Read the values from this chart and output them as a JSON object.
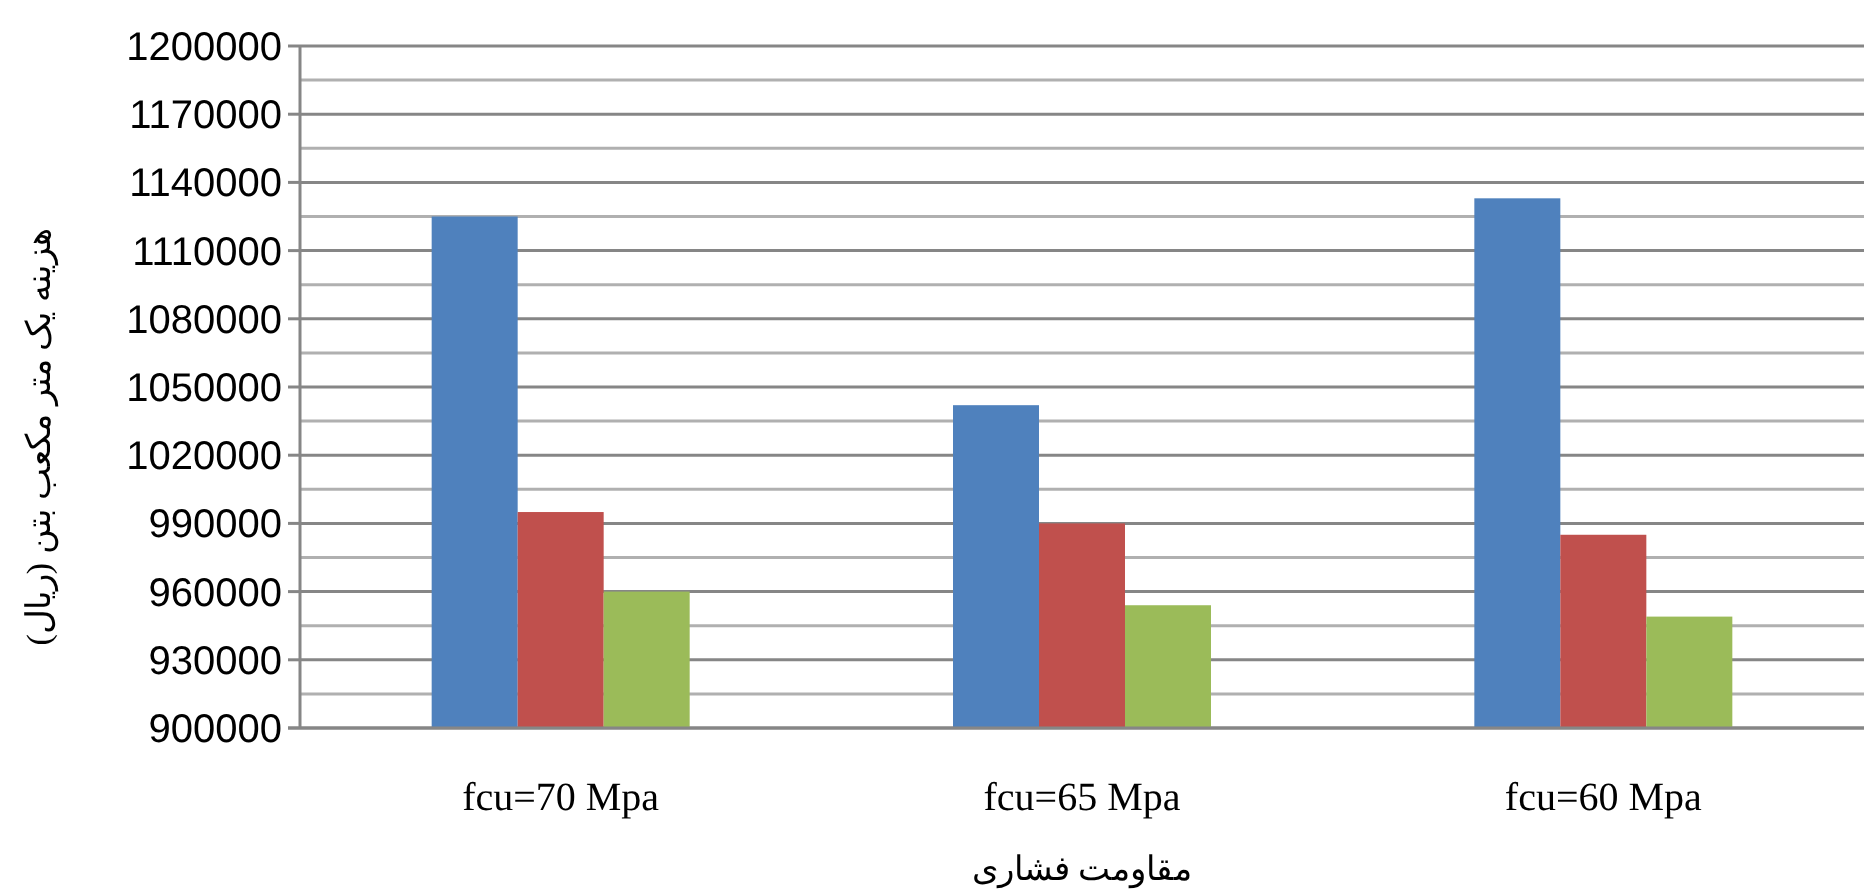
{
  "chart_data": {
    "type": "bar",
    "xlabel": "مقاومت فشاری",
    "ylabel": "هزینه یک متر مکعب بتن (ریال)",
    "categories": [
      "fcu=70 Mpa",
      "fcu=65 Mpa",
      "fcu=60 Mpa"
    ],
    "series": [
      {
        "color": "#4f81bd",
        "values": [
          1125000,
          1042000,
          1133000
        ]
      },
      {
        "color": "#c0504d",
        "values": [
          995000,
          990000,
          985000
        ]
      },
      {
        "color": "#9bbb59",
        "values": [
          960000,
          954000,
          949000
        ]
      }
    ],
    "ylim": [
      900000,
      1200000
    ],
    "yticks": [
      900000,
      {
        "value": 915000,
        "label": null
      },
      930000,
      {
        "value": 945000,
        "label": null
      },
      960000,
      {
        "value": 975000,
        "label": null
      },
      990000,
      {
        "value": 1005000,
        "label": null
      },
      1020000,
      {
        "value": 1035000,
        "label": null
      },
      1050000,
      {
        "value": 1065000,
        "label": null
      },
      1080000,
      {
        "value": 1095000,
        "label": null
      },
      1110000,
      {
        "value": 1125000,
        "label": null
      },
      1140000,
      {
        "value": 1155000,
        "label": null
      },
      1170000,
      {
        "value": 1185000,
        "label": null
      },
      1200000
    ],
    "grid": "y"
  }
}
